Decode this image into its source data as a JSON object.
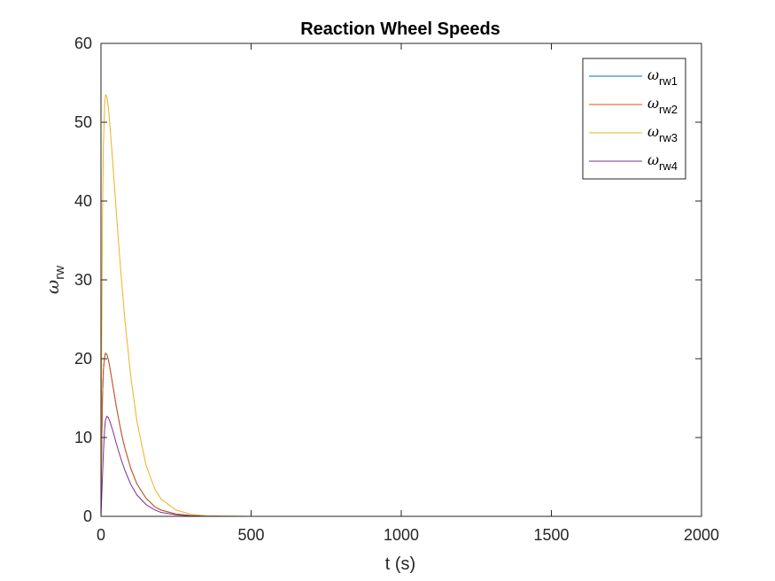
{
  "chart_data": {
    "type": "line",
    "title": "Reaction Wheel Speeds",
    "xlabel": "t (s)",
    "ylabel": {
      "symbol": "ω",
      "subscript": "rw"
    },
    "xlim": [
      0,
      2000
    ],
    "ylim": [
      0,
      60
    ],
    "xticks": [
      0,
      500,
      1000,
      1500,
      2000
    ],
    "xtick_labels": [
      "0",
      "500",
      "1000",
      "1500",
      "2000"
    ],
    "yticks": [
      0,
      10,
      20,
      30,
      40,
      50,
      60
    ],
    "ytick_labels": [
      "0",
      "10",
      "20",
      "30",
      "40",
      "50",
      "60"
    ],
    "grid": false,
    "legend_position": "top-right",
    "series": [
      {
        "name": {
          "symbol": "ω",
          "subscript": "rw1"
        },
        "color": "#0072BD",
        "x": [
          0,
          2,
          5,
          8,
          12,
          15,
          20,
          25,
          30,
          40,
          50,
          60,
          70,
          80,
          100,
          120,
          150,
          180,
          200,
          250,
          300,
          350,
          400,
          500,
          1000,
          1500,
          2000
        ],
        "y": [
          0,
          8,
          15,
          18.5,
          20.2,
          20.7,
          20.5,
          19.8,
          18.8,
          16.5,
          14.2,
          12.1,
          10.2,
          8.6,
          6.0,
          4.1,
          2.3,
          1.2,
          0.8,
          0.3,
          0.1,
          0.04,
          0.01,
          0,
          0,
          0,
          0
        ]
      },
      {
        "name": {
          "symbol": "ω",
          "subscript": "rw2"
        },
        "color": "#D95319",
        "x": [
          0,
          2,
          5,
          8,
          12,
          15,
          20,
          25,
          30,
          40,
          50,
          60,
          70,
          80,
          100,
          120,
          150,
          180,
          200,
          250,
          300,
          350,
          400,
          500,
          1000,
          1500,
          2000
        ],
        "y": [
          0,
          8,
          15,
          18.5,
          20.2,
          20.7,
          20.5,
          19.8,
          18.8,
          16.5,
          14.2,
          12.1,
          10.2,
          8.6,
          6.0,
          4.1,
          2.3,
          1.2,
          0.8,
          0.3,
          0.1,
          0.04,
          0.01,
          0,
          0,
          0,
          0
        ]
      },
      {
        "name": {
          "symbol": "ω",
          "subscript": "rw3"
        },
        "color": "#EDB120",
        "x": [
          0,
          2,
          5,
          8,
          12,
          15,
          20,
          25,
          30,
          40,
          50,
          60,
          70,
          80,
          100,
          120,
          150,
          180,
          200,
          250,
          300,
          350,
          400,
          500,
          1000,
          1500,
          2000
        ],
        "y": [
          0,
          20,
          38,
          47,
          52,
          53.5,
          53.2,
          51.8,
          49.5,
          44.5,
          39.2,
          34,
          29.2,
          24.8,
          17.5,
          12,
          6.5,
          3.4,
          2.2,
          0.8,
          0.25,
          0.07,
          0.02,
          0,
          0,
          0,
          0
        ]
      },
      {
        "name": {
          "symbol": "ω",
          "subscript": "rw4"
        },
        "color": "#7E2F8E",
        "x": [
          0,
          2,
          5,
          8,
          12,
          15,
          20,
          25,
          30,
          40,
          50,
          60,
          70,
          80,
          100,
          120,
          150,
          180,
          200,
          250,
          300,
          350,
          400,
          500,
          1000,
          1500,
          2000
        ],
        "y": [
          0,
          2,
          5,
          8,
          11,
          12.2,
          12.7,
          12.5,
          12,
          10.8,
          9.4,
          8.1,
          6.9,
          5.8,
          4.0,
          2.7,
          1.5,
          0.8,
          0.5,
          0.2,
          0.06,
          0.02,
          0,
          0,
          0,
          0,
          0
        ]
      }
    ]
  }
}
